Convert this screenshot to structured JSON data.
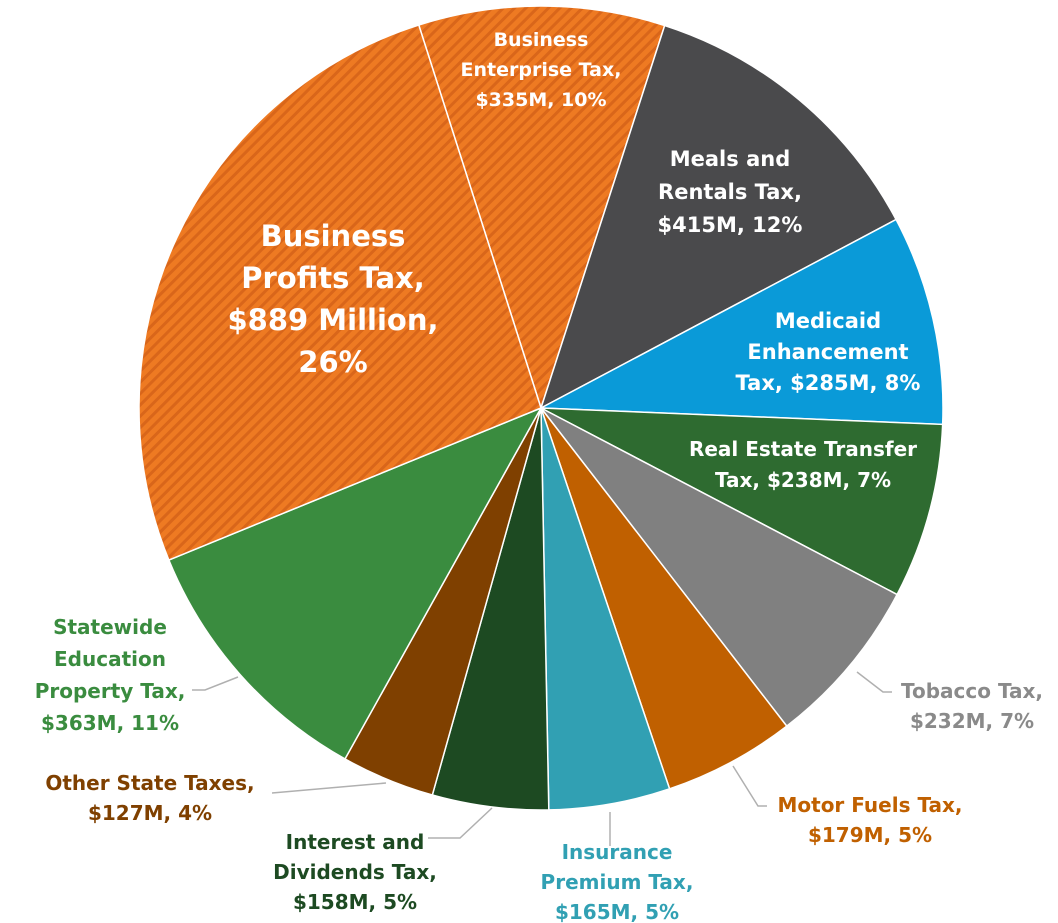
{
  "chart_data": {
    "type": "pie",
    "labels": [
      [
        "Business",
        "Enterprise Tax,",
        "$335M, 10%"
      ],
      [
        "Meals and",
        "Rentals Tax,",
        "$415M, 12%"
      ],
      [
        "Medicaid",
        "Enhancement",
        "Tax, $285M, 8%"
      ],
      [
        "Real Estate Transfer",
        "Tax, $238M, 7%"
      ],
      [
        "Tobacco Tax,",
        "$232M, 7%"
      ],
      [
        "Motor Fuels Tax,",
        "$179M, 5%"
      ],
      [
        "Insurance",
        "Premium Tax,",
        "$165M, 5%"
      ],
      [
        "Interest and",
        "Dividends Tax,",
        "$158M, 5%"
      ],
      [
        "Other State Taxes,",
        "$127M, 4%"
      ],
      [
        "Statewide",
        "Education",
        "Property Tax,",
        "$363M, 11%"
      ],
      [
        "Business",
        "Profits Tax,",
        "$889 Million,",
        "26%"
      ]
    ],
    "values": [
      335,
      415,
      285,
      238,
      232,
      179,
      165,
      158,
      127,
      363,
      889
    ],
    "colors": [
      "#e8731c",
      "#4a4a4c",
      "#0a9ad8",
      "#2e6b30",
      "#808080",
      "#c06000",
      "#31a0b3",
      "#1d4a22",
      "#7f4000",
      "#3a8c3f",
      "#e8731c"
    ],
    "hatched": [
      true,
      false,
      false,
      false,
      false,
      false,
      false,
      false,
      false,
      false,
      true
    ]
  }
}
